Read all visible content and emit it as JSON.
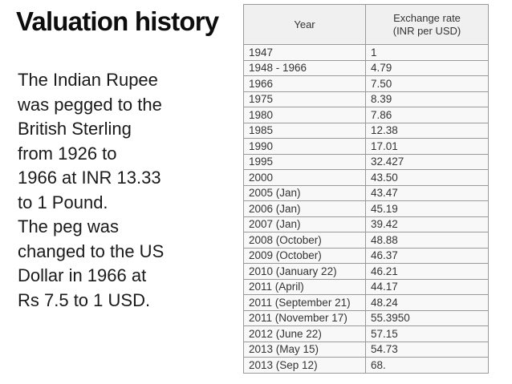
{
  "slide": {
    "title": "Valuation history",
    "body": "The Indian Rupee\nwas pegged to the\nBritish Sterling\nfrom 1926 to\n1966 at INR 13.33\nto 1 Pound.\nThe peg was\nchanged to the US\nDollar in 1966 at\nRs 7.5 to 1 USD."
  },
  "table": {
    "headers": {
      "year": "Year",
      "rate": "Exchange rate\n(INR per USD)"
    },
    "rows": [
      {
        "year": "1947",
        "rate": "1"
      },
      {
        "year": "1948 - 1966",
        "rate": "4.79"
      },
      {
        "year": "1966",
        "rate": "7.50"
      },
      {
        "year": "1975",
        "rate": "8.39"
      },
      {
        "year": "1980",
        "rate": "7.86"
      },
      {
        "year": "1985",
        "rate": "12.38"
      },
      {
        "year": "1990",
        "rate": "17.01"
      },
      {
        "year": "1995",
        "rate": "32.427"
      },
      {
        "year": "2000",
        "rate": "43.50"
      },
      {
        "year": "2005 (Jan)",
        "rate": "43.47"
      },
      {
        "year": "2006 (Jan)",
        "rate": "45.19"
      },
      {
        "year": "2007 (Jan)",
        "rate": "39.42"
      },
      {
        "year": "2008 (October)",
        "rate": "48.88"
      },
      {
        "year": "2009 (October)",
        "rate": "46.37"
      },
      {
        "year": "2010 (January 22)",
        "rate": "46.21"
      },
      {
        "year": "2011 (April)",
        "rate": "44.17"
      },
      {
        "year": "2011 (September 21)",
        "rate": "48.24"
      },
      {
        "year": "2011 (November 17)",
        "rate": "55.3950"
      },
      {
        "year": "2012 (June 22)",
        "rate": "57.15"
      },
      {
        "year": "2013 (May 15)",
        "rate": "54.73"
      },
      {
        "year": "2013 (Sep 12)",
        "rate": "68."
      }
    ]
  },
  "colors": {
    "header_bg": "#f0f0f0",
    "cell_bg": "#f8f8f8",
    "border": "#999999",
    "table_text": "#333333",
    "title_text": "#0d0d0d",
    "body_text": "#1a1a1a",
    "slide_bg": "#ffffff"
  }
}
